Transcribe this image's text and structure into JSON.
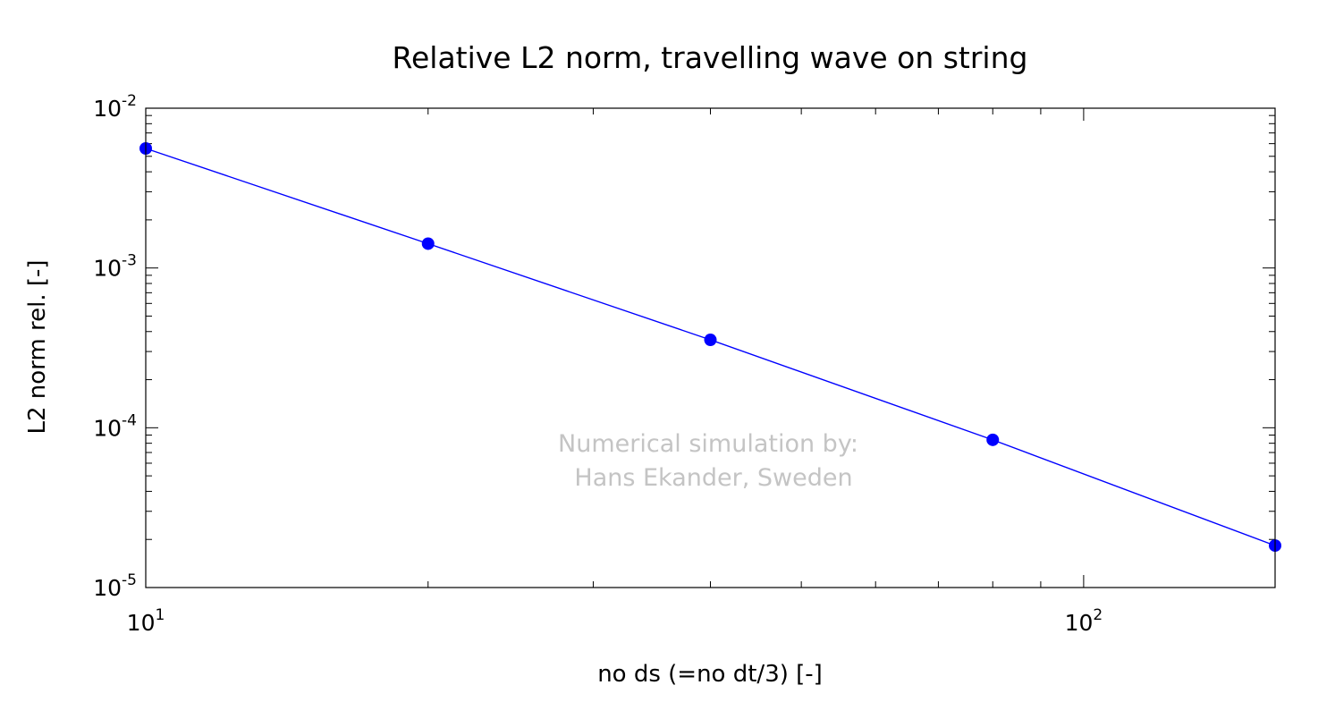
{
  "chart_data": {
    "type": "line",
    "title": "Relative L2 norm, travelling wave on string",
    "xlabel": "no ds (=no dt/3) [-]",
    "ylabel": "L2 norm rel. [-]",
    "xscale": "log",
    "yscale": "log",
    "xlim": [
      10,
      160
    ],
    "ylim": [
      1e-05,
      0.01
    ],
    "x_ticks": [
      {
        "value": 10,
        "base": "10",
        "exp": "1"
      },
      {
        "value": 100,
        "base": "10",
        "exp": "2"
      }
    ],
    "y_ticks": [
      {
        "value": 0.01,
        "base": "10",
        "exp": "-2"
      },
      {
        "value": 0.001,
        "base": "10",
        "exp": "-3"
      },
      {
        "value": 0.0001,
        "base": "10",
        "exp": "-4"
      },
      {
        "value": 1e-05,
        "base": "10",
        "exp": "-5"
      }
    ],
    "grid": false,
    "series": [
      {
        "color": "#0000ff",
        "x": [
          10,
          20,
          40,
          80,
          160
        ],
        "y": [
          0.0056,
          0.00142,
          0.000355,
          8.4e-05,
          1.83e-05
        ]
      }
    ],
    "annotation": {
      "line1": "Numerical simulation by:",
      "line2": "Hans Ekander, Sweden"
    }
  }
}
